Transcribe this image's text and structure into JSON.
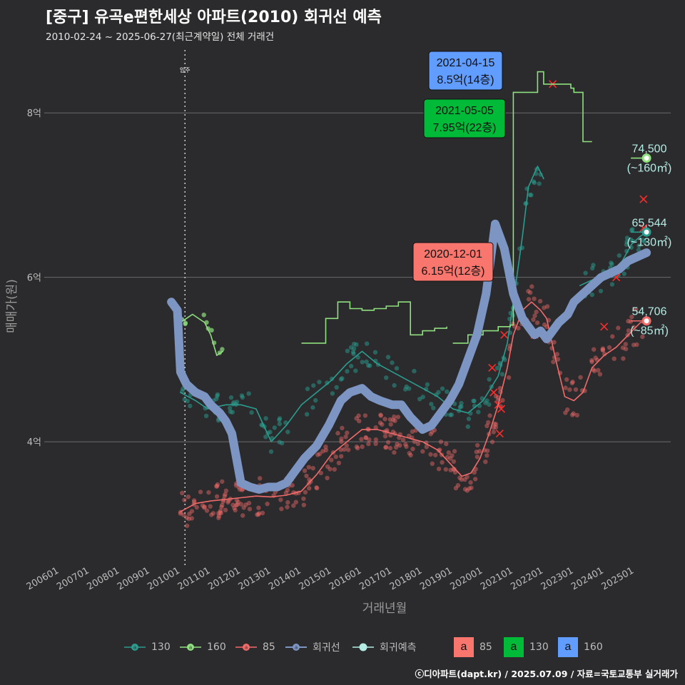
{
  "title": "[중구] 유곡e편한세상 아파트(2010) 회귀선 예측",
  "subtitle": "2010-02-24 ~ 2025-06-27(최근계약일) 전체 거래건",
  "copyright": "ⓒ디아파트(dapt.kr) / 2025.07.09 / 자료=국토교통부 실거래가",
  "colors": {
    "background": "#2b2a2c",
    "grid": "#6b6b6b",
    "s85": "#f26b6b",
    "s130": "#2a9d8f",
    "s160": "#8fe07f",
    "regression": "#7d95c2",
    "forecast": "#b4ece4",
    "label85": "#f8766d",
    "label130": "#00ba38",
    "label160": "#619cff"
  },
  "chart_data": {
    "type": "line",
    "title": "[중구] 유곡e편한세상 아파트(2010) 회귀선 예측",
    "xlabel": "거래년월",
    "ylabel": "매매가(원)",
    "xlim": [
      2005.5,
      2026.2
    ],
    "ylim": [
      2.5,
      8.8
    ],
    "y_unit": "억",
    "yticks": [
      4,
      6,
      8
    ],
    "ytick_labels": [
      "4억",
      "6억",
      "8억"
    ],
    "xticks": [
      2006,
      2007,
      2008,
      2009,
      2010,
      2011,
      2012,
      2013,
      2014,
      2015,
      2016,
      2017,
      2018,
      2019,
      2020,
      2021,
      2022,
      2023,
      2024,
      2025
    ],
    "xtick_labels": [
      "200601",
      "200701",
      "200801",
      "200901",
      "201001",
      "201101",
      "201201",
      "201301",
      "201401",
      "201501",
      "201601",
      "201701",
      "201801",
      "201901",
      "202001",
      "202101",
      "202201",
      "202301",
      "202401",
      "202501"
    ],
    "vline": {
      "x": 2010.15,
      "label": "입주"
    },
    "series": [
      {
        "name": "85",
        "kind": "moving-average",
        "x": [
          2010.0,
          2010.5,
          2011.0,
          2011.5,
          2012.0,
          2012.5,
          2013.0,
          2013.5,
          2014.0,
          2014.5,
          2015.0,
          2015.5,
          2016.0,
          2016.5,
          2017.0,
          2017.5,
          2018.0,
          2018.5,
          2019.0,
          2019.3,
          2019.6,
          2019.9,
          2020.2,
          2020.5,
          2020.8,
          2021.0,
          2021.3,
          2021.6,
          2021.9,
          2022.1,
          2022.4,
          2022.7,
          2023.0,
          2023.3,
          2023.6,
          2024.0,
          2024.4,
          2024.8,
          2025.2,
          2025.4
        ],
        "values": [
          3.15,
          3.25,
          3.28,
          3.3,
          3.32,
          3.34,
          3.33,
          3.35,
          3.4,
          3.6,
          3.85,
          4.0,
          4.15,
          4.15,
          4.1,
          4.05,
          4.0,
          3.9,
          3.7,
          3.58,
          3.62,
          3.8,
          4.1,
          4.45,
          4.9,
          5.3,
          5.6,
          5.7,
          5.6,
          5.5,
          5.0,
          4.55,
          4.5,
          4.6,
          4.9,
          5.05,
          5.15,
          5.3,
          5.45,
          5.45
        ]
      },
      {
        "name": "130",
        "kind": "moving-average",
        "x": [
          2010.0,
          2010.5,
          2010.9,
          2011.5,
          2012.0,
          2012.5,
          2013.0,
          2013.5,
          2014.0,
          2014.5,
          2015.0,
          2015.5,
          2016.0,
          2016.5,
          2017.0,
          2017.5,
          2018.0,
          2018.5,
          2019.0,
          2019.5,
          2020.0,
          2020.5,
          2020.8,
          2021.0,
          2021.3,
          2021.5,
          2021.8,
          2022.0
        ],
        "values": [
          4.6,
          4.5,
          4.4,
          4.45,
          4.45,
          4.4,
          4.0,
          4.2,
          4.45,
          4.6,
          4.75,
          4.95,
          5.1,
          4.95,
          4.85,
          4.75,
          4.65,
          4.55,
          4.4,
          4.35,
          4.5,
          4.8,
          5.2,
          5.7,
          6.5,
          7.1,
          7.35,
          7.2
        ]
      },
      {
        "name": "130-recent",
        "kind": "moving-average",
        "x": [
          2023.2,
          2023.5,
          2023.8,
          2024.0,
          2024.3,
          2024.6,
          2024.9,
          2025.2,
          2025.4
        ],
        "values": [
          5.9,
          5.95,
          6.0,
          6.02,
          6.08,
          6.2,
          6.4,
          6.5,
          6.55
        ]
      },
      {
        "name": "160",
        "kind": "moving-average",
        "x": [
          2010.0,
          2010.4,
          2010.8,
          2011.0,
          2011.2,
          2011.4
        ],
        "values": [
          5.45,
          5.55,
          5.45,
          5.3,
          5.05,
          5.1
        ]
      },
      {
        "name": "160-mid",
        "kind": "moving-average",
        "x": [
          2014.0,
          2014.4,
          2014.8,
          2015.2,
          2015.6,
          2016.0,
          2016.4,
          2016.8,
          2017.2,
          2017.6,
          2018.0,
          2018.4,
          2018.8
        ],
        "values": [
          5.2,
          5.2,
          5.5,
          5.7,
          5.62,
          5.6,
          5.62,
          5.65,
          5.7,
          5.3,
          5.35,
          5.38,
          5.4
        ],
        "gaps": [
          [
            2014.4,
            2014.8
          ]
        ]
      },
      {
        "name": "160-late",
        "kind": "moving-average",
        "x": [
          2019.0,
          2019.5,
          2020.0,
          2020.5,
          2020.9,
          2021.0,
          2021.3,
          2021.7,
          2021.8,
          2022.0,
          2022.5,
          2022.9,
          2023.0,
          2023.3,
          2023.6
        ],
        "values": [
          5.2,
          5.3,
          5.35,
          5.4,
          5.42,
          8.25,
          8.25,
          8.25,
          8.5,
          8.35,
          8.35,
          8.3,
          8.25,
          7.65,
          7.65
        ]
      },
      {
        "name": "회귀선",
        "kind": "regression",
        "x": [
          2009.7,
          2009.9,
          2010.0,
          2010.2,
          2010.5,
          2010.8,
          2011.0,
          2011.3,
          2011.5,
          2011.7,
          2012.0,
          2012.3,
          2012.6,
          2012.9,
          2013.2,
          2013.5,
          2013.8,
          2014.1,
          2014.5,
          2014.9,
          2015.3,
          2015.6,
          2016.0,
          2016.3,
          2016.6,
          2017.0,
          2017.3,
          2017.6,
          2018.0,
          2018.3,
          2018.6,
          2018.9,
          2019.2,
          2019.5,
          2019.8,
          2020.1,
          2020.4,
          2020.7,
          2021.0,
          2021.3,
          2021.5,
          2021.7,
          2021.9,
          2022.1,
          2022.3,
          2022.5,
          2022.8,
          2023.0,
          2023.3,
          2023.6,
          2023.9,
          2024.2,
          2024.5,
          2024.8,
          2025.1,
          2025.4
        ],
        "values": [
          5.7,
          5.6,
          4.85,
          4.7,
          4.6,
          4.55,
          4.45,
          4.35,
          4.25,
          4.1,
          3.5,
          3.45,
          3.42,
          3.45,
          3.45,
          3.5,
          3.65,
          3.8,
          3.95,
          4.2,
          4.5,
          4.6,
          4.65,
          4.55,
          4.5,
          4.45,
          4.45,
          4.3,
          4.15,
          4.2,
          4.35,
          4.5,
          4.7,
          5.0,
          5.3,
          5.8,
          6.65,
          6.35,
          5.8,
          5.5,
          5.4,
          5.3,
          5.35,
          5.25,
          5.35,
          5.45,
          5.55,
          5.7,
          5.8,
          5.9,
          6.0,
          6.05,
          6.1,
          6.2,
          6.25,
          6.3
        ]
      }
    ],
    "forecast_points": [
      {
        "series": "160",
        "x": 2025.4,
        "value": 7.45,
        "label": "74,500",
        "area": "(~160㎡)"
      },
      {
        "series": "130",
        "x": 2025.4,
        "value": 6.55,
        "label": "65,544",
        "area": "(~130㎡)"
      },
      {
        "series": "85",
        "x": 2025.4,
        "value": 5.47,
        "label": "54,706",
        "area": "(~85㎡)"
      }
    ],
    "annotations": [
      {
        "series": "160",
        "date": "2021-04-15",
        "price": "8.5억(14층)",
        "x": 2021.3,
        "value": 8.5
      },
      {
        "series": "130",
        "date": "2021-05-05",
        "price": "7.95억(22층)",
        "x": 2021.35,
        "value": 7.95
      },
      {
        "series": "85",
        "date": "2020-12-01",
        "price": "6.15억(12층)",
        "x": 2020.92,
        "value": 6.15
      }
    ],
    "legend": {
      "placement": "bottom",
      "lines": [
        "130",
        "160",
        "85",
        "회귀선",
        "회귀예측"
      ],
      "boxes": [
        {
          "glyph": "a",
          "label": "85"
        },
        {
          "glyph": "a",
          "label": "130"
        },
        {
          "glyph": "a",
          "label": "160"
        }
      ]
    }
  }
}
